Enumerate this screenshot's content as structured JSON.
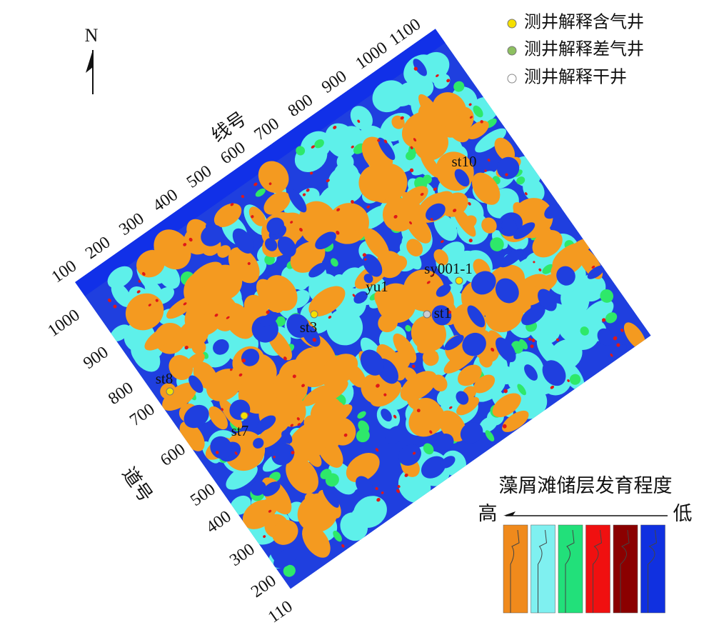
{
  "north": "N",
  "legend": {
    "items": [
      {
        "label": "测井解释含气井"
      },
      {
        "label": "测井解释差气井"
      },
      {
        "label": "测井解释干井"
      }
    ]
  },
  "map": {
    "line_axis": {
      "title": "线号",
      "ticks": [
        100,
        200,
        300,
        400,
        500,
        600,
        700,
        800,
        900,
        1000,
        1100
      ]
    },
    "trace_axis": {
      "title": "道号",
      "ticks": [
        1000,
        900,
        800,
        700,
        600,
        500,
        400,
        300,
        200,
        110
      ]
    },
    "wells": [
      {
        "name": "st10"
      },
      {
        "name": "sy001-1"
      },
      {
        "name": "yu1"
      },
      {
        "name": "st1"
      },
      {
        "name": "st3"
      },
      {
        "name": "st8"
      },
      {
        "name": "st7"
      }
    ]
  },
  "scale": {
    "title": "藻屑滩储层发育程度",
    "high": "高",
    "low": "低"
  }
}
